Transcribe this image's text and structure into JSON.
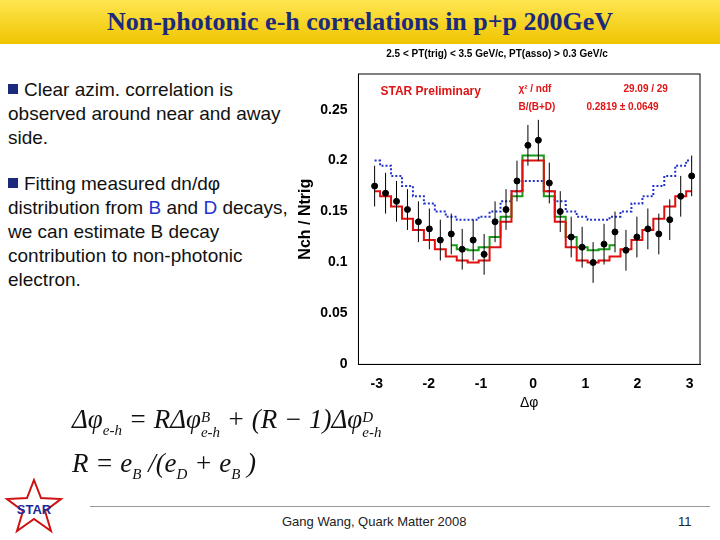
{
  "header": "Non-photonic e-h correlations in p+p 200GeV",
  "bullets": [
    [
      {
        "text": "Clear azim. correlation is observed around near and away side."
      }
    ],
    [
      {
        "text": "Fitting measured dn/dφ distribution from "
      },
      {
        "text": "B",
        "highlight": true
      },
      {
        "text": " and "
      },
      {
        "text": "D",
        "highlight": true
      },
      {
        "text": " decays, we can estimate B decay contribution to non-photonic electron."
      }
    ]
  ],
  "equations": [
    [
      {
        "text": "Δφ",
        "sub": "e-h"
      },
      {
        "text": " = RΔφ",
        "sub": "e-h",
        "sup": "B"
      },
      {
        "text": " + (R − 1)Δφ",
        "sub": "e-h",
        "sup": "D"
      }
    ],
    [
      {
        "text": "R = e",
        "sub": "B"
      },
      {
        "text": " /(e",
        "sub": "D"
      },
      {
        "text": " + e",
        "sub": "B"
      },
      {
        "text": " )"
      }
    ]
  ],
  "footer": "Gang Wang, Quark Matter 2008",
  "page_number": "11",
  "logo": "STAR",
  "chart_data": {
    "type": "scatter",
    "title": "2.5 < PT(trig) < 3.5 GeV/c, PT(asso) > 0.3 GeV/c",
    "x_label": "Δφ",
    "y_label": "Nch / Ntrig",
    "annotations": [
      "STAR Preliminary",
      "χ² / ndf",
      "29.09 / 29",
      "B/(B+D)",
      "0.2819 ± 0.0649"
    ],
    "x": [
      -3.04,
      -2.83,
      -2.62,
      -2.41,
      -2.2,
      -1.99,
      -1.78,
      -1.57,
      -1.36,
      -1.15,
      -0.94,
      -0.73,
      -0.52,
      -0.31,
      -0.1,
      0.1,
      0.31,
      0.52,
      0.73,
      0.94,
      1.15,
      1.36,
      1.57,
      1.78,
      1.99,
      2.2,
      2.41,
      2.62,
      2.83,
      3.04
    ],
    "series": [
      {
        "type": "step",
        "color": "#e01010",
        "line_style": "solid",
        "values": [
          0.17,
          0.165,
          0.155,
          0.143,
          0.132,
          0.122,
          0.113,
          0.106,
          0.102,
          0.1,
          0.102,
          0.115,
          0.14,
          0.17,
          0.2,
          0.2,
          0.17,
          0.14,
          0.115,
          0.102,
          0.1,
          0.102,
          0.106,
          0.113,
          0.122,
          0.132,
          0.143,
          0.155,
          0.165,
          0.17
        ]
      },
      {
        "type": "step",
        "color": "#1a9a1a",
        "line_style": "solid",
        "values": [
          null,
          null,
          null,
          null,
          null,
          null,
          null,
          0.117,
          0.113,
          0.112,
          0.115,
          0.125,
          0.145,
          0.165,
          0.205,
          0.205,
          0.165,
          0.145,
          0.125,
          0.115,
          0.112,
          0.113,
          0.117,
          null,
          null,
          null,
          null,
          null,
          null,
          null
        ]
      },
      {
        "type": "step",
        "color": "#2233cc",
        "line_style": "dotted",
        "values": [
          0.2,
          0.195,
          0.185,
          0.175,
          0.165,
          0.158,
          0.15,
          0.145,
          0.142,
          0.142,
          0.145,
          0.15,
          0.16,
          0.17,
          0.18,
          0.18,
          0.17,
          0.16,
          0.15,
          0.145,
          0.142,
          0.142,
          0.145,
          0.15,
          0.158,
          0.165,
          0.175,
          0.185,
          0.195,
          0.2
        ]
      },
      {
        "type": "scatter",
        "color": "#000000",
        "marker": "circle",
        "values": [
          0.175,
          0.168,
          0.16,
          0.152,
          0.14,
          0.133,
          0.122,
          0.128,
          0.113,
          0.122,
          0.108,
          0.14,
          0.152,
          0.18,
          0.215,
          0.22,
          0.178,
          0.15,
          0.125,
          0.115,
          0.1,
          0.118,
          0.13,
          0.112,
          0.125,
          0.133,
          0.128,
          0.142,
          0.165,
          0.185
        ],
        "errors": [
          0.02,
          0.02,
          0.02,
          0.02,
          0.02,
          0.02,
          0.02,
          0.02,
          0.02,
          0.02,
          0.02,
          0.02,
          0.02,
          0.02,
          0.02,
          0.02,
          0.02,
          0.02,
          0.02,
          0.02,
          0.02,
          0.02,
          0.02,
          0.02,
          0.02,
          0.02,
          0.02,
          0.02,
          0.02,
          0.02
        ]
      }
    ],
    "xlim": [
      -3.35,
      3.2
    ],
    "xticks": [
      -3,
      -2,
      -1,
      0,
      1,
      2,
      3
    ],
    "ylim": [
      0,
      0.285
    ],
    "yticks": [
      0,
      0.05,
      0.1,
      0.15,
      0.2,
      0.25
    ],
    "grid": false
  }
}
